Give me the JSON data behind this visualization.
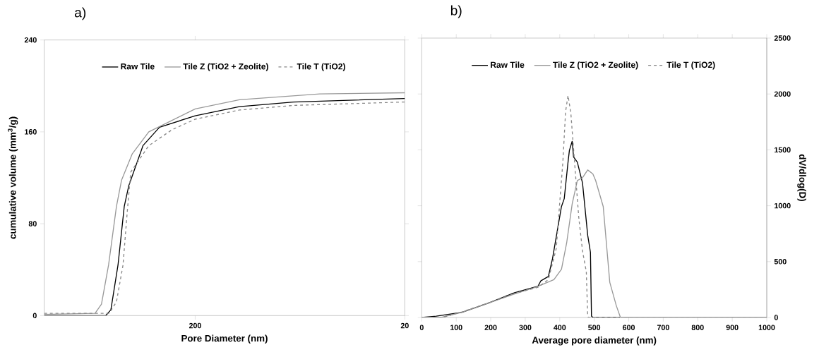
{
  "chart_data": [
    {
      "type": "line",
      "title": "a)",
      "xlabel": "Pore Diameter (nm)",
      "ylabel": "cumulative volume (mm$^{3}$/g)",
      "log": "x",
      "xlim": [
        1050,
        20
      ],
      "xticks": [
        200,
        20
      ],
      "ylim": [
        0,
        240
      ],
      "yticks": [
        0,
        80,
        160,
        240
      ],
      "legend": "top",
      "grid": false,
      "series": [
        {
          "name": "Raw Tile",
          "color": "#000000",
          "line_style": "solid",
          "x": [
            1050,
            534,
            505,
            467,
            436,
            415,
            355,
            296,
            200,
            123,
            68,
            20
          ],
          "values": [
            0,
            0,
            5,
            44,
            95,
            113,
            148,
            164,
            174,
            182,
            186,
            189
          ]
        },
        {
          "name": "Tile Z (TiO2 + Zeolite)",
          "color": "#999999",
          "line_style": "solid",
          "x": [
            1050,
            601,
            560,
            518,
            475,
            449,
            399,
            333,
            200,
            123,
            51,
            20
          ],
          "values": [
            1,
            2,
            10,
            44,
            95,
            118,
            141,
            160,
            180,
            188,
            193,
            194
          ]
        },
        {
          "name": "Tile T (TiO2)",
          "color": "#888888",
          "line_style": "dashed",
          "x": [
            1050,
            514,
            475,
            442,
            422,
            406,
            333,
            257,
            200,
            123,
            68,
            20
          ],
          "values": [
            2,
            2,
            12,
            44,
            90,
            125,
            148,
            162,
            171,
            179,
            183,
            186
          ]
        }
      ]
    },
    {
      "type": "line",
      "title": "b)",
      "xlabel": "Average pore diameter (nm)",
      "y2label": "dV/dlog(D)",
      "xlim": [
        0,
        1000
      ],
      "xticks": [
        0,
        100,
        200,
        300,
        400,
        500,
        600,
        700,
        800,
        900,
        1000
      ],
      "y2lim": [
        0,
        2500
      ],
      "y2ticks": [
        0,
        500,
        1000,
        1500,
        2000,
        2500
      ],
      "legend": "top",
      "grid": false,
      "series": [
        {
          "name": "Raw Tile",
          "color": "#000000",
          "line_style": "solid",
          "axis": "y2",
          "x": [
            0,
            42,
            117,
            193,
            269,
            337,
            345,
            367,
            379,
            405,
            413,
            424,
            428,
            436,
            440,
            451,
            466,
            481,
            489,
            492,
            496,
            1000
          ],
          "values": [
            0,
            12,
            47,
            128,
            222,
            280,
            327,
            367,
            526,
            993,
            1063,
            1390,
            1495,
            1577,
            1437,
            1390,
            1203,
            736,
            584,
            12,
            0,
            0
          ]
        },
        {
          "name": "Tile Z (TiO2 + Zeolite)",
          "color": "#999999",
          "line_style": "solid",
          "axis": "y2",
          "x": [
            0,
            60,
            117,
            193,
            269,
            330,
            383,
            405,
            420,
            436,
            451,
            466,
            481,
            496,
            504,
            526,
            545,
            564,
            576,
            1000
          ],
          "values": [
            0,
            3,
            47,
            128,
            210,
            270,
            339,
            432,
            666,
            1016,
            1226,
            1250,
            1320,
            1285,
            1226,
            993,
            315,
            105,
            0,
            0
          ]
        },
        {
          "name": "Tile T (TiO2)",
          "color": "#888888",
          "line_style": "dashed",
          "axis": "y2",
          "x": [
            0,
            60,
            117,
            193,
            269,
            337,
            367,
            390,
            402,
            409,
            417,
            424,
            432,
            443,
            455,
            466,
            477,
            481,
            483,
            1000
          ],
          "values": [
            0,
            0,
            50,
            130,
            215,
            270,
            339,
            619,
            1110,
            1390,
            1845,
            1986,
            1834,
            1390,
            899,
            596,
            409,
            12,
            0,
            0
          ]
        }
      ]
    }
  ]
}
